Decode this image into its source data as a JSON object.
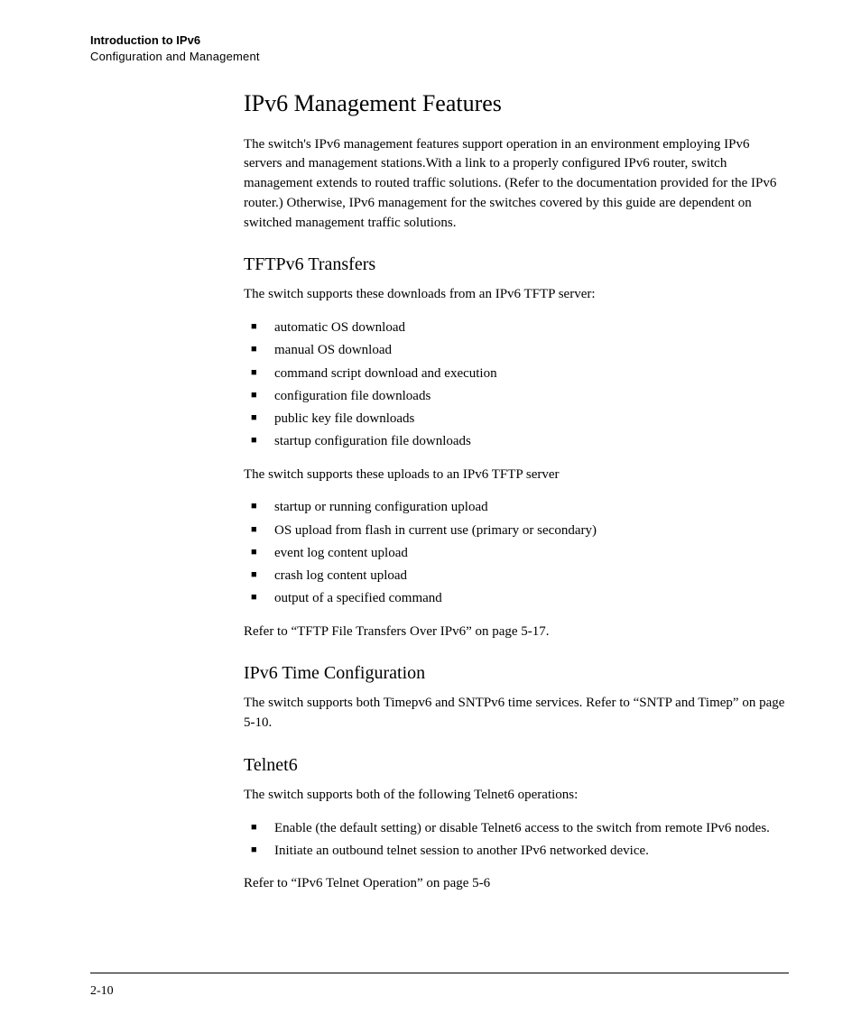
{
  "running_head": {
    "title": "Introduction to IPv6",
    "subtitle": "Configuration and Management"
  },
  "section": {
    "heading": "IPv6 Management Features",
    "intro": "The switch's IPv6 management features support operation in an environment employing IPv6 servers and management stations.With a link to a properly configured IPv6 router, switch management extends to routed traffic solu­tions. (Refer to the documentation provided for the IPv6 router.) Otherwise, IPv6 management for the switches covered by this guide are dependent on switched management traffic solutions."
  },
  "tftp": {
    "heading": "TFTPv6 Transfers",
    "downloads_intro": "The switch supports these downloads from an IPv6 TFTP server:",
    "downloads": [
      "automatic OS download",
      "manual OS download",
      "command script download and execution",
      "configuration file downloads",
      "public key file downloads",
      "startup configuration file downloads"
    ],
    "uploads_intro": "The switch supports these uploads to an IPv6 TFTP server",
    "uploads": [
      "startup or running configuration upload",
      "OS upload from flash in current use (primary or secondary)",
      "event log content upload",
      "crash log content upload",
      "output of a specified command"
    ],
    "refer": "Refer to “TFTP File Transfers Over IPv6” on page 5-17."
  },
  "time": {
    "heading": "IPv6 Time Configuration",
    "body": "The switch supports both Timepv6 and SNTPv6 time services. Refer to “SNTP and Timep” on page 5-10."
  },
  "telnet": {
    "heading": "Telnet6",
    "intro": "The switch supports both of the following Telnet6 operations:",
    "items": [
      "Enable (the default setting) or disable Telnet6 access to the switch from remote IPv6 nodes.",
      "Initiate an outbound telnet session to another IPv6 networked device."
    ],
    "refer": "Refer to “IPv6 Telnet Operation” on page 5-6"
  },
  "page_number": "2-10"
}
